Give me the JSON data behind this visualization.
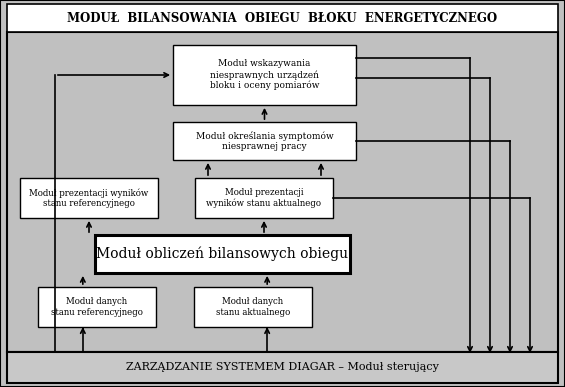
{
  "bg_color": "#c0c0c0",
  "white": "#ffffff",
  "black": "#000000",
  "title_text": "MODUŁ  BILANSOWANIA  OBIEGU  BŁOKU  ENERGETYCZNEGO",
  "bottom_text": "ZARZĄDZANIE SYSTEMEM DIAGAR – Moduł sterujący",
  "box_wskazywania": "Moduł wskazywania\nniesprawnych urządzeń\nbloku i oceny pomiarów",
  "box_symptomow": "Moduł określania symptomów\nniesprawnej pracy",
  "box_ref_wyniki": "Moduł prezentacji wyników\nstanu referencyjnego",
  "box_akt_wyniki": "Moduł prezentacji\nwyników stanu aktualnego",
  "box_obliczen": "Moduł obliczeń bilansowych obiegu",
  "box_ref_dane": "Moduł danych\nstanu referencyjnego",
  "box_akt_dane": "Moduł danych\nstanu aktualnego"
}
